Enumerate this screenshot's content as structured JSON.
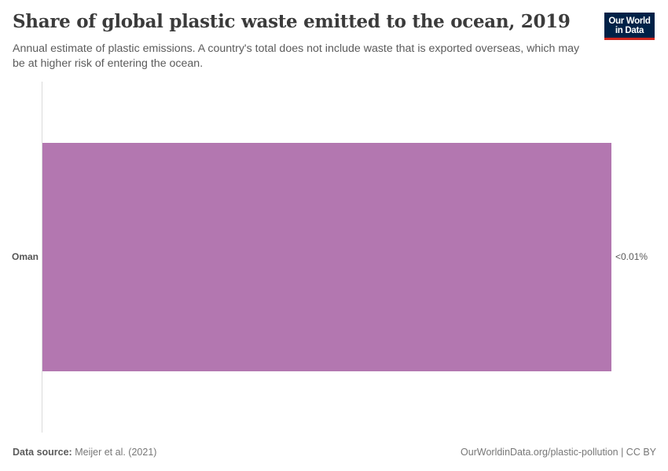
{
  "header": {
    "title": "Share of global plastic waste emitted to the ocean, 2019",
    "subtitle": "Annual estimate of plastic emissions. A country's total does not include waste that is exported overseas, which may be at higher risk of entering the ocean.",
    "logo_line1": "Our World",
    "logo_line2": "in Data"
  },
  "colors": {
    "bar": "#b377b0",
    "logo_bg": "#002147",
    "logo_accent": "#ce261e"
  },
  "footer": {
    "source_label": "Data source:",
    "source_value": "Meijer et al. (2021)",
    "url_license": "OurWorldinData.org/plastic-pollution | CC BY"
  },
  "chart_data": {
    "type": "bar",
    "orientation": "horizontal",
    "title": "Share of global plastic waste emitted to the ocean, 2019",
    "subtitle": "Annual estimate of plastic emissions. A country's total does not include waste that is exported overseas, which may be at higher risk of entering the ocean.",
    "categories": [
      "Oman"
    ],
    "values": [
      0.005
    ],
    "value_labels": [
      "<0.01%"
    ],
    "unit": "%",
    "xlabel": "",
    "ylabel": "",
    "grid": false,
    "legend": "none"
  }
}
